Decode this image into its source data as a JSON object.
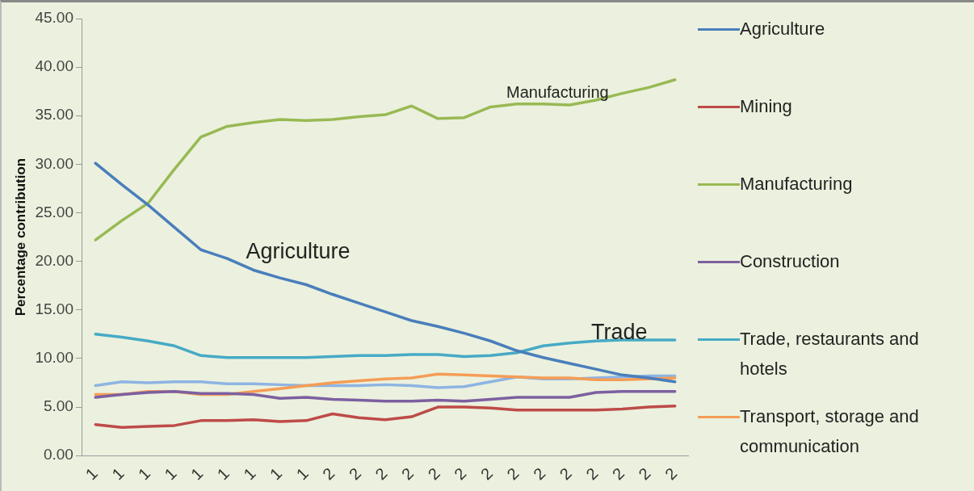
{
  "chart_data": {
    "type": "line",
    "ylabel": "Percentage contribution",
    "categories": [
      "1",
      "1",
      "1",
      "1",
      "1",
      "1",
      "1",
      "1",
      "1",
      "2",
      "2",
      "2",
      "2",
      "2",
      "2",
      "2",
      "2",
      "2",
      "2",
      "2",
      "2",
      "2",
      "2"
    ],
    "series": [
      {
        "name": "Agriculture",
        "color": "#4a7ebb",
        "values": [
          30.1,
          27.9,
          25.8,
          23.5,
          21.2,
          20.3,
          19.1,
          18.3,
          17.6,
          16.6,
          15.7,
          14.8,
          13.9,
          13.3,
          12.6,
          11.8,
          10.8,
          10.1,
          9.5,
          8.9,
          8.3,
          8.0,
          7.6
        ]
      },
      {
        "name": "Mining",
        "color": "#be4b48",
        "values": [
          3.2,
          2.9,
          3.0,
          3.1,
          3.6,
          3.6,
          3.7,
          3.5,
          3.6,
          4.3,
          3.9,
          3.7,
          4.0,
          5.0,
          5.0,
          4.9,
          4.7,
          4.7,
          4.7,
          4.7,
          4.8,
          5.0,
          5.1
        ]
      },
      {
        "name": "Manufacturing",
        "color": "#98b954",
        "values": [
          22.2,
          24.2,
          26.0,
          29.5,
          32.8,
          33.9,
          34.3,
          34.6,
          34.5,
          34.6,
          34.9,
          35.1,
          36.0,
          34.7,
          34.8,
          35.9,
          36.2,
          36.2,
          36.1,
          36.6,
          37.3,
          37.9,
          38.7
        ]
      },
      {
        "name": "Construction",
        "color": "#7d60a0",
        "values": [
          6.0,
          6.3,
          6.5,
          6.6,
          6.4,
          6.4,
          6.3,
          5.9,
          6.0,
          5.8,
          5.7,
          5.6,
          5.6,
          5.7,
          5.6,
          5.8,
          6.0,
          6.0,
          6.0,
          6.5,
          6.6,
          6.6,
          6.6
        ]
      },
      {
        "name": "Trade, restaurants and hotels",
        "color": "#46aac5",
        "values": [
          12.5,
          12.2,
          11.8,
          11.3,
          10.3,
          10.1,
          10.1,
          10.1,
          10.1,
          10.2,
          10.3,
          10.3,
          10.4,
          10.4,
          10.2,
          10.3,
          10.6,
          11.3,
          11.6,
          11.8,
          11.9,
          11.9,
          11.9
        ]
      },
      {
        "name": "Transport, storage and communication",
        "color": "#f59d56",
        "values": [
          6.3,
          6.3,
          6.6,
          6.6,
          6.3,
          6.3,
          6.6,
          6.9,
          7.2,
          7.5,
          7.7,
          7.9,
          8.0,
          8.4,
          8.3,
          8.2,
          8.1,
          8.0,
          8.0,
          7.8,
          7.8,
          7.9,
          8.0
        ]
      },
      {
        "color": "#8eb4e3",
        "values": [
          7.2,
          7.6,
          7.5,
          7.6,
          7.6,
          7.4,
          7.4,
          7.3,
          7.2,
          7.2,
          7.2,
          7.3,
          7.2,
          7.0,
          7.1,
          7.6,
          8.1,
          7.9,
          7.9,
          8.0,
          8.1,
          8.2,
          8.2
        ]
      }
    ],
    "ylim": [
      0,
      45
    ],
    "yticks": [
      {
        "value": 0,
        "label": "0.00"
      },
      {
        "value": 5,
        "label": "5.00"
      },
      {
        "value": 10,
        "label": "10.00"
      },
      {
        "value": 15,
        "label": "15.00"
      },
      {
        "value": 20,
        "label": "20.00"
      },
      {
        "value": 25,
        "label": "25.00"
      },
      {
        "value": 30,
        "label": "30.00"
      },
      {
        "value": 35,
        "label": "35.00"
      },
      {
        "value": 40,
        "label": "40.00"
      },
      {
        "value": 45,
        "label": "45.00"
      }
    ],
    "grid": false,
    "legend": "right",
    "marker": "none",
    "line_style": "solid",
    "annotations": [
      "Agriculture",
      "Manufacturing",
      "Trade"
    ]
  }
}
